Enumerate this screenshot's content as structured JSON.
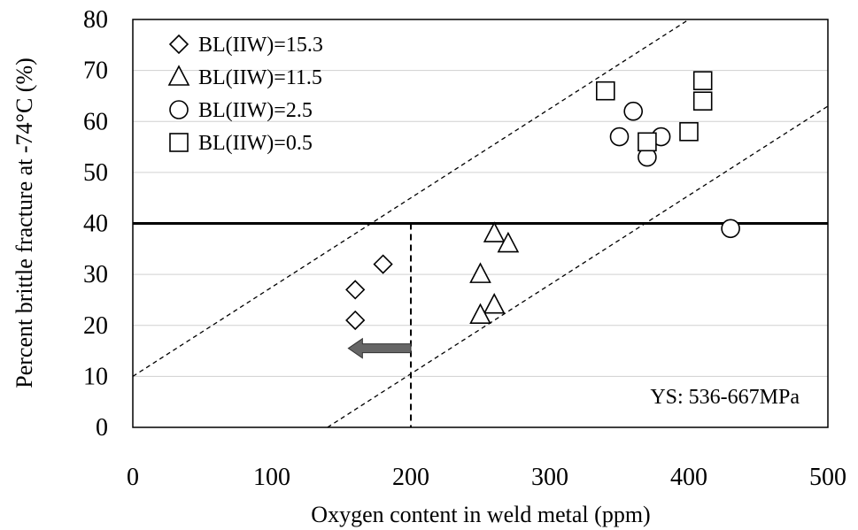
{
  "chart_data": {
    "type": "scatter",
    "xlabel": "Oxygen content in weld metal   (ppm)",
    "ylabel": "Percent brittle fracture at -74°C   (%)",
    "xlim": [
      0,
      500
    ],
    "ylim": [
      0,
      80
    ],
    "x_ticks": [
      "0",
      "100",
      "200",
      "300",
      "400",
      "500"
    ],
    "y_ticks": [
      "0",
      "10",
      "20",
      "30",
      "40",
      "50",
      "60",
      "70",
      "80"
    ],
    "grid": "horizontal",
    "legend_position": "top-left",
    "series": [
      {
        "name": "BL(IIW)=15.3",
        "marker": "diamond",
        "points": [
          [
            160,
            27
          ],
          [
            160,
            21
          ],
          [
            180,
            32
          ]
        ]
      },
      {
        "name": "BL(IIW)=11.5",
        "marker": "triangle",
        "points": [
          [
            260,
            38
          ],
          [
            270,
            36
          ],
          [
            250,
            30
          ],
          [
            260,
            24
          ],
          [
            250,
            22
          ]
        ]
      },
      {
        "name": "BL(IIW)=2.5",
        "marker": "circle",
        "points": [
          [
            360,
            62
          ],
          [
            350,
            57
          ],
          [
            380,
            57
          ],
          [
            370,
            53
          ],
          [
            430,
            39
          ]
        ]
      },
      {
        "name": "BL(IIW)=0.5",
        "marker": "square",
        "points": [
          [
            340,
            66
          ],
          [
            410,
            68
          ],
          [
            410,
            64
          ],
          [
            400,
            58
          ],
          [
            370,
            56
          ]
        ]
      }
    ],
    "reference_lines": {
      "horizontal_y": 40,
      "vertical_x": 200,
      "band_upper": [
        [
          0,
          10
        ],
        [
          400,
          80
        ]
      ],
      "band_lower": [
        [
          140,
          0
        ],
        [
          500,
          63
        ]
      ]
    },
    "arrow": {
      "from": [
        200,
        15.5
      ],
      "to": [
        155,
        15.5
      ],
      "color": "#666666"
    },
    "annotation": "YS: 536-667MPa"
  }
}
